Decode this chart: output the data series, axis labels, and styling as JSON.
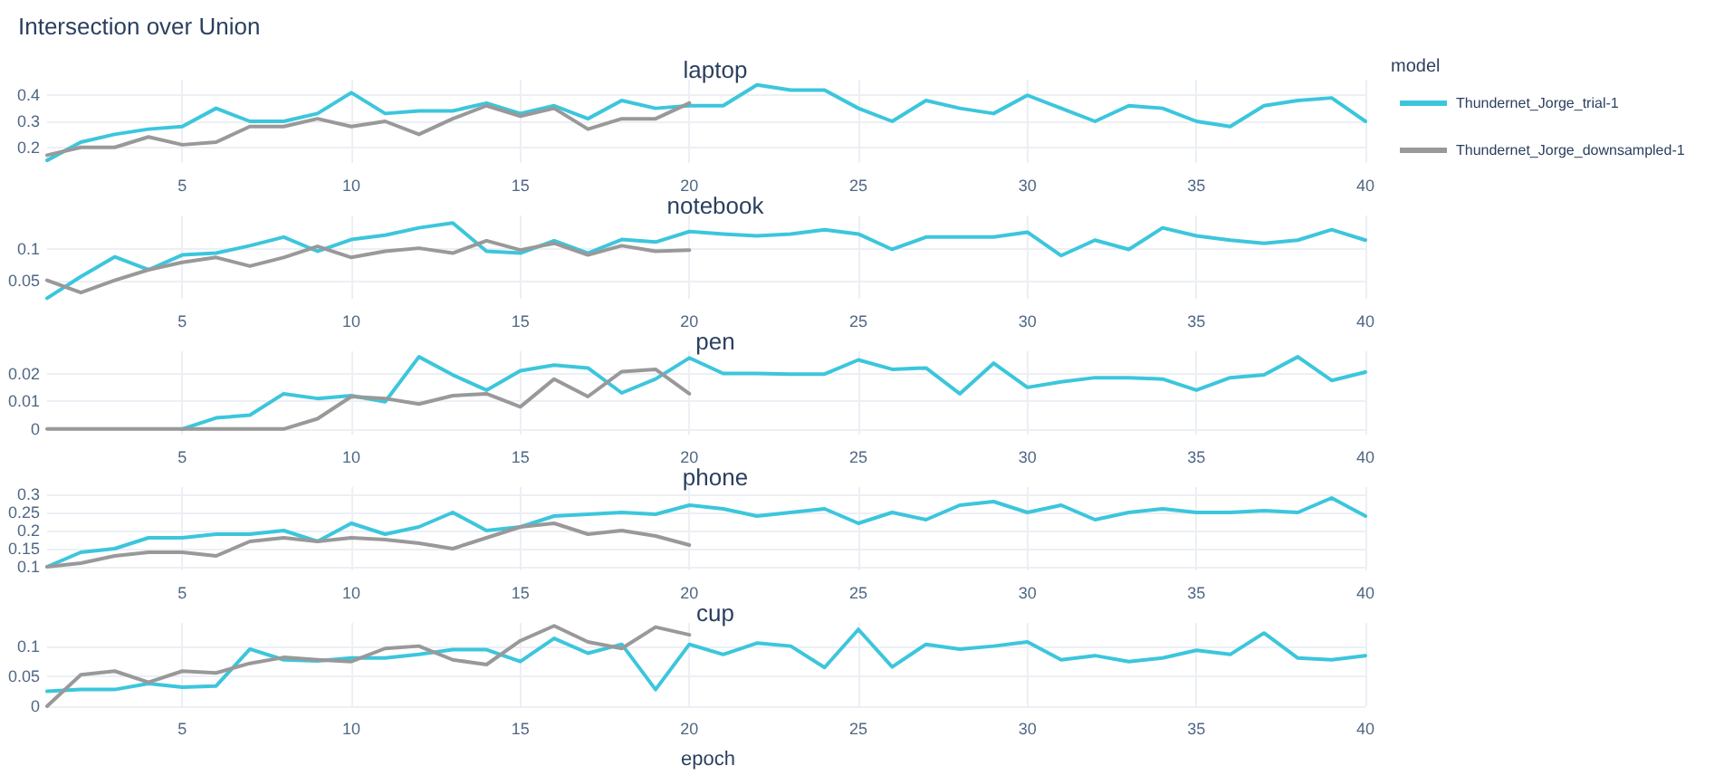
{
  "chart_data": [
    {
      "type": "line",
      "title": "laptop",
      "annotations": [
        "Intersection over Union"
      ],
      "legend": "right",
      "legend_title": "model",
      "grid": true,
      "xlim": [
        1,
        40
      ],
      "xticks": [
        5,
        10,
        15,
        20,
        25,
        30,
        35,
        40
      ],
      "ylim": [
        0.14,
        0.46
      ],
      "yticks": [
        0.2,
        0.3,
        0.4
      ],
      "x": [
        1,
        2,
        3,
        4,
        5,
        6,
        7,
        8,
        9,
        10,
        11,
        12,
        13,
        14,
        15,
        16,
        17,
        18,
        19,
        20,
        21,
        22,
        23,
        24,
        25,
        26,
        27,
        28,
        29,
        30,
        31,
        32,
        33,
        34,
        35,
        36,
        37,
        38,
        39,
        40
      ],
      "series": [
        {
          "name": "Thundernet_Jorge_trial-1",
          "color": "#3cc6dc",
          "values": [
            0.15,
            0.22,
            0.25,
            0.27,
            0.28,
            0.35,
            0.3,
            0.3,
            0.33,
            0.41,
            0.33,
            0.34,
            0.34,
            0.37,
            0.33,
            0.36,
            0.31,
            0.38,
            0.35,
            0.36,
            0.36,
            0.44,
            0.42,
            0.42,
            0.35,
            0.3,
            0.38,
            0.35,
            0.33,
            0.4,
            0.35,
            0.3,
            0.36,
            0.35,
            0.3,
            0.28,
            0.36,
            0.38,
            0.39,
            0.3
          ]
        },
        {
          "name": "Thundernet_Jorge_downsampled-1",
          "color": "#999999",
          "x": [
            1,
            2,
            3,
            4,
            5,
            6,
            7,
            8,
            9,
            10,
            11,
            12,
            13,
            14,
            15,
            16,
            17,
            18,
            19,
            20
          ],
          "values": [
            0.17,
            0.2,
            0.2,
            0.24,
            0.21,
            0.22,
            0.28,
            0.28,
            0.31,
            0.28,
            0.3,
            0.25,
            0.31,
            0.36,
            0.32,
            0.35,
            0.27,
            0.31,
            0.31,
            0.37
          ]
        }
      ]
    },
    {
      "type": "line",
      "title": "notebook",
      "legend": false,
      "grid": true,
      "xlim": [
        1,
        40
      ],
      "xticks": [
        5,
        10,
        15,
        20,
        25,
        30,
        35,
        40
      ],
      "ylim": [
        0.02,
        0.155
      ],
      "yticks": [
        0.05,
        0.1
      ],
      "x": [
        1,
        2,
        3,
        4,
        5,
        6,
        7,
        8,
        9,
        10,
        11,
        12,
        13,
        14,
        15,
        16,
        17,
        18,
        19,
        20,
        21,
        22,
        23,
        24,
        25,
        26,
        27,
        28,
        29,
        30,
        31,
        32,
        33,
        34,
        35,
        36,
        37,
        38,
        39,
        40
      ],
      "series": [
        {
          "color": "#3cc6dc",
          "values": [
            0.021,
            0.056,
            0.088,
            0.067,
            0.091,
            0.094,
            0.106,
            0.12,
            0.097,
            0.116,
            0.123,
            0.135,
            0.143,
            0.097,
            0.094,
            0.114,
            0.094,
            0.116,
            0.112,
            0.129,
            0.125,
            0.122,
            0.125,
            0.132,
            0.125,
            0.1,
            0.12,
            0.12,
            0.12,
            0.128,
            0.09,
            0.115,
            0.1,
            0.135,
            0.122,
            0.115,
            0.11,
            0.115,
            0.132,
            0.115
          ]
        },
        {
          "color": "#999999",
          "x": [
            1,
            2,
            3,
            4,
            5,
            6,
            7,
            8,
            9,
            10,
            11,
            12,
            13,
            14,
            15,
            16,
            17,
            18,
            19,
            20
          ],
          "values": [
            0.05,
            0.03,
            0.05,
            0.067,
            0.079,
            0.087,
            0.073,
            0.087,
            0.105,
            0.087,
            0.097,
            0.102,
            0.094,
            0.114,
            0.099,
            0.11,
            0.091,
            0.106,
            0.097,
            0.099
          ]
        }
      ]
    },
    {
      "type": "line",
      "title": "pen",
      "legend": false,
      "grid": true,
      "xlim": [
        1,
        40
      ],
      "xticks": [
        5,
        10,
        15,
        20,
        25,
        30,
        35,
        40
      ],
      "ylim": [
        -0.002,
        0.028
      ],
      "yticks": [
        0,
        0.01,
        0.02
      ],
      "series": [
        {
          "color": "#3cc6dc",
          "x": [
            5,
            6,
            7,
            8,
            9,
            10,
            11,
            12,
            13,
            14,
            15,
            16,
            17,
            18,
            19,
            20,
            21,
            22,
            23,
            24,
            25,
            26,
            27,
            28,
            29,
            30,
            31,
            32,
            33,
            34,
            35,
            36,
            37,
            38,
            39,
            40
          ],
          "values": [
            0,
            0.004,
            0.005,
            0.0127,
            0.011,
            0.012,
            0.0098,
            0.026,
            0.0195,
            0.014,
            0.021,
            0.023,
            0.022,
            0.013,
            0.018,
            0.0256,
            0.02,
            0.02,
            0.0198,
            0.0198,
            0.0249,
            0.0215,
            0.022,
            0.0127,
            0.0237,
            0.015,
            0.017,
            0.0185,
            0.0185,
            0.018,
            0.014,
            0.0185,
            0.0195,
            0.026,
            0.0175,
            0.0205
          ]
        },
        {
          "color": "#999999",
          "x": [
            1,
            2,
            3,
            4,
            5,
            6,
            7,
            8,
            9,
            10,
            11,
            12,
            13,
            14,
            15,
            16,
            17,
            18,
            19,
            20
          ],
          "values": [
            0,
            0,
            0,
            0,
            0,
            0,
            0,
            0,
            0.0037,
            0.0117,
            0.011,
            0.009,
            0.012,
            0.0127,
            0.008,
            0.018,
            0.0117,
            0.0207,
            0.0215,
            0.0127
          ]
        }
      ]
    },
    {
      "type": "line",
      "title": "phone",
      "legend": false,
      "grid": true,
      "xlim": [
        1,
        40
      ],
      "xticks": [
        5,
        10,
        15,
        20,
        25,
        30,
        35,
        40
      ],
      "ylim": [
        0.09,
        0.32
      ],
      "yticks": [
        0.1,
        0.15,
        0.2,
        0.25,
        0.3
      ],
      "x": [
        1,
        2,
        3,
        4,
        5,
        6,
        7,
        8,
        9,
        10,
        11,
        12,
        13,
        14,
        15,
        16,
        17,
        18,
        19,
        20,
        21,
        22,
        23,
        24,
        25,
        26,
        27,
        28,
        29,
        30,
        31,
        32,
        33,
        34,
        35,
        36,
        37,
        38,
        39,
        40
      ],
      "series": [
        {
          "color": "#3cc6dc",
          "values": [
            0.1,
            0.14,
            0.15,
            0.18,
            0.18,
            0.19,
            0.19,
            0.2,
            0.17,
            0.22,
            0.19,
            0.21,
            0.25,
            0.2,
            0.21,
            0.24,
            0.245,
            0.25,
            0.245,
            0.27,
            0.26,
            0.24,
            0.25,
            0.26,
            0.22,
            0.25,
            0.23,
            0.27,
            0.28,
            0.25,
            0.27,
            0.23,
            0.25,
            0.26,
            0.25,
            0.25,
            0.255,
            0.25,
            0.29,
            0.24
          ]
        },
        {
          "color": "#999999",
          "x": [
            1,
            2,
            3,
            4,
            5,
            6,
            7,
            8,
            9,
            10,
            11,
            12,
            13,
            14,
            15,
            16,
            17,
            18,
            19,
            20
          ],
          "values": [
            0.1,
            0.11,
            0.13,
            0.14,
            0.14,
            0.13,
            0.17,
            0.18,
            0.17,
            0.18,
            0.175,
            0.165,
            0.15,
            0.18,
            0.21,
            0.22,
            0.19,
            0.2,
            0.185,
            0.16
          ]
        }
      ]
    },
    {
      "type": "line",
      "title": "cup",
      "xlabel": "epoch",
      "legend": false,
      "grid": true,
      "xlim": [
        1,
        40
      ],
      "xticks": [
        5,
        10,
        15,
        20,
        25,
        30,
        35,
        40
      ],
      "ylim": [
        0,
        0.14
      ],
      "yticks": [
        0,
        0.05,
        0.1
      ],
      "x": [
        1,
        2,
        3,
        4,
        5,
        6,
        7,
        8,
        9,
        10,
        11,
        12,
        13,
        14,
        15,
        16,
        17,
        18,
        19,
        20,
        21,
        22,
        23,
        24,
        25,
        26,
        27,
        28,
        29,
        30,
        31,
        32,
        33,
        34,
        35,
        36,
        37,
        38,
        39,
        40
      ],
      "series": [
        {
          "color": "#3cc6dc",
          "values": [
            0.025,
            0.028,
            0.028,
            0.038,
            0.032,
            0.034,
            0.096,
            0.078,
            0.076,
            0.081,
            0.081,
            0.087,
            0.095,
            0.095,
            0.075,
            0.114,
            0.089,
            0.104,
            0.028,
            0.104,
            0.087,
            0.106,
            0.101,
            0.065,
            0.129,
            0.066,
            0.104,
            0.096,
            0.101,
            0.108,
            0.078,
            0.085,
            0.075,
            0.081,
            0.094,
            0.087,
            0.123,
            0.081,
            0.078,
            0.085
          ]
        },
        {
          "color": "#999999",
          "x": [
            1,
            2,
            3,
            4,
            5,
            6,
            7,
            8,
            9,
            10,
            11,
            12,
            13,
            14,
            15,
            16,
            17,
            18,
            19,
            20
          ],
          "values": [
            0,
            0.053,
            0.059,
            0.04,
            0.059,
            0.056,
            0.072,
            0.082,
            0.078,
            0.075,
            0.097,
            0.101,
            0.078,
            0.07,
            0.11,
            0.135,
            0.108,
            0.097,
            0.133,
            0.12
          ]
        }
      ]
    }
  ]
}
